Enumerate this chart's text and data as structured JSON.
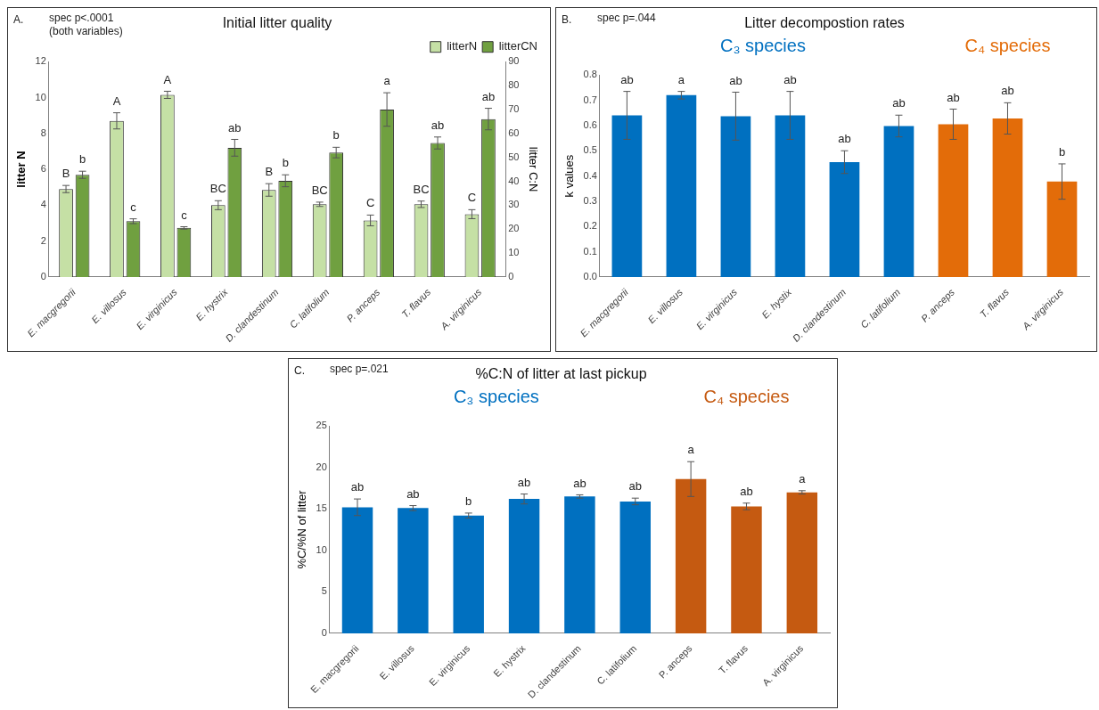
{
  "chart_data": [
    {
      "type": "bar",
      "title": "Initial litter quality",
      "ylabel": "litter N",
      "y2label": "litter C:N",
      "annotations": [
        "A.",
        "spec p<.0001",
        "(both variables)"
      ],
      "categories": [
        "E. macgregorii",
        "E. villosus",
        "E. virginicus",
        "E. hystrix",
        "D. clandestinum",
        "C. latifolium",
        "P. anceps",
        "T. flavus",
        "A. virginicus"
      ],
      "series": [
        {
          "name": "litterN",
          "color": "#c5e0a5",
          "values": [
            4.9,
            8.7,
            10.15,
            4.0,
            4.85,
            4.05,
            3.15,
            4.05,
            3.5
          ],
          "errors": [
            0.2,
            0.45,
            0.2,
            0.25,
            0.35,
            0.12,
            0.3,
            0.18,
            0.25
          ],
          "value_labels": [
            "B",
            "A",
            "A",
            "BC",
            "B",
            "BC",
            "C",
            "BC",
            "C"
          ]
        },
        {
          "name": "litterCN",
          "color": "#70a040",
          "axis": "y2",
          "values": [
            42.7,
            23.3,
            20.5,
            54,
            40.2,
            52,
            70,
            56,
            66
          ],
          "errors": [
            1.5,
            1,
            0.5,
            3.5,
            2.5,
            2.2,
            7,
            2.5,
            4.5
          ],
          "value_labels": [
            "b",
            "c",
            "c",
            "ab",
            "b",
            "b",
            "a",
            "ab",
            "ab"
          ]
        }
      ],
      "ylim": [
        0,
        12
      ],
      "yticks": [
        0,
        2,
        4,
        6,
        8,
        10,
        12
      ],
      "y2lim": [
        0,
        90
      ],
      "y2ticks": [
        0,
        10,
        20,
        30,
        40,
        50,
        60,
        70,
        80,
        90
      ],
      "legend": "top right"
    },
    {
      "type": "bar",
      "title": "Litter decompostion rates",
      "ylabel": "k values",
      "annotations": [
        "B.",
        "spec p=.044"
      ],
      "categories": [
        "E. macgregorii",
        "E. villosus",
        "E. virginicus",
        "E. hystix",
        "D. clandestinum",
        "C. latifolium",
        "P. anceps",
        "T. flavus",
        "A. virginicus"
      ],
      "series": [
        {
          "name": "C₃ species",
          "color": "#0070c0",
          "values": [
            0.64,
            0.72,
            0.637,
            0.64,
            0.455,
            0.598,
            null,
            null,
            null
          ],
          "errors": [
            0.095,
            0.015,
            0.095,
            0.095,
            0.045,
            0.043,
            null,
            null,
            null
          ],
          "value_labels": [
            "ab",
            "a",
            "ab",
            "ab",
            "ab",
            "ab",
            null,
            null,
            null
          ]
        },
        {
          "name": "C₄ species",
          "color": "#e36c09",
          "values": [
            null,
            null,
            null,
            null,
            null,
            null,
            0.605,
            0.628,
            0.378
          ],
          "errors": [
            null,
            null,
            null,
            null,
            null,
            null,
            0.06,
            0.062,
            0.07
          ],
          "value_labels": [
            null,
            null,
            null,
            null,
            null,
            null,
            "ab",
            "ab",
            "b"
          ]
        }
      ],
      "ylim": [
        0,
        0.8
      ],
      "yticks": [
        {
          "value": 0,
          "label": "0.0"
        },
        {
          "value": 0.1,
          "label": "0.1"
        },
        {
          "value": 0.2,
          "label": "0.2"
        },
        {
          "value": 0.3,
          "label": "0.3"
        },
        {
          "value": 0.4,
          "label": "0.4"
        },
        {
          "value": 0.5,
          "label": "0.5"
        },
        {
          "value": 0.6,
          "label": "0.6"
        },
        {
          "value": 0.7,
          "label": "0.7"
        },
        {
          "value": 0.8,
          "label": "0.8"
        }
      ]
    },
    {
      "type": "bar",
      "title": "%C:N of litter at last pickup",
      "ylabel": "%C/%N of litter",
      "annotations": [
        "C.",
        "spec p=.021"
      ],
      "categories": [
        "E. macgregorii",
        "E. villosus",
        "E. virginicus",
        "E. hystrix",
        "D. clandestinum",
        "C. latifolium",
        "P. anceps",
        "T. flavus",
        "A. virginicus"
      ],
      "series": [
        {
          "name": "C₃ species",
          "color": "#0070c0",
          "values": [
            15.2,
            15.1,
            14.2,
            16.2,
            16.5,
            15.9,
            null,
            null,
            null
          ],
          "errors": [
            1.0,
            0.3,
            0.3,
            0.6,
            0.2,
            0.4,
            null,
            null,
            null
          ],
          "value_labels": [
            "ab",
            "ab",
            "b",
            "ab",
            "ab",
            "ab",
            null,
            null,
            null
          ]
        },
        {
          "name": "C₄ species",
          "color": "#c55a11",
          "values": [
            null,
            null,
            null,
            null,
            null,
            null,
            18.6,
            15.3,
            17.0
          ],
          "errors": [
            null,
            null,
            null,
            null,
            null,
            null,
            2.1,
            0.4,
            0.2
          ],
          "value_labels": [
            null,
            null,
            null,
            null,
            null,
            null,
            "a",
            "ab",
            "a"
          ]
        }
      ],
      "ylim": [
        0,
        25
      ],
      "yticks": [
        0,
        5,
        10,
        15,
        20,
        25
      ]
    }
  ]
}
